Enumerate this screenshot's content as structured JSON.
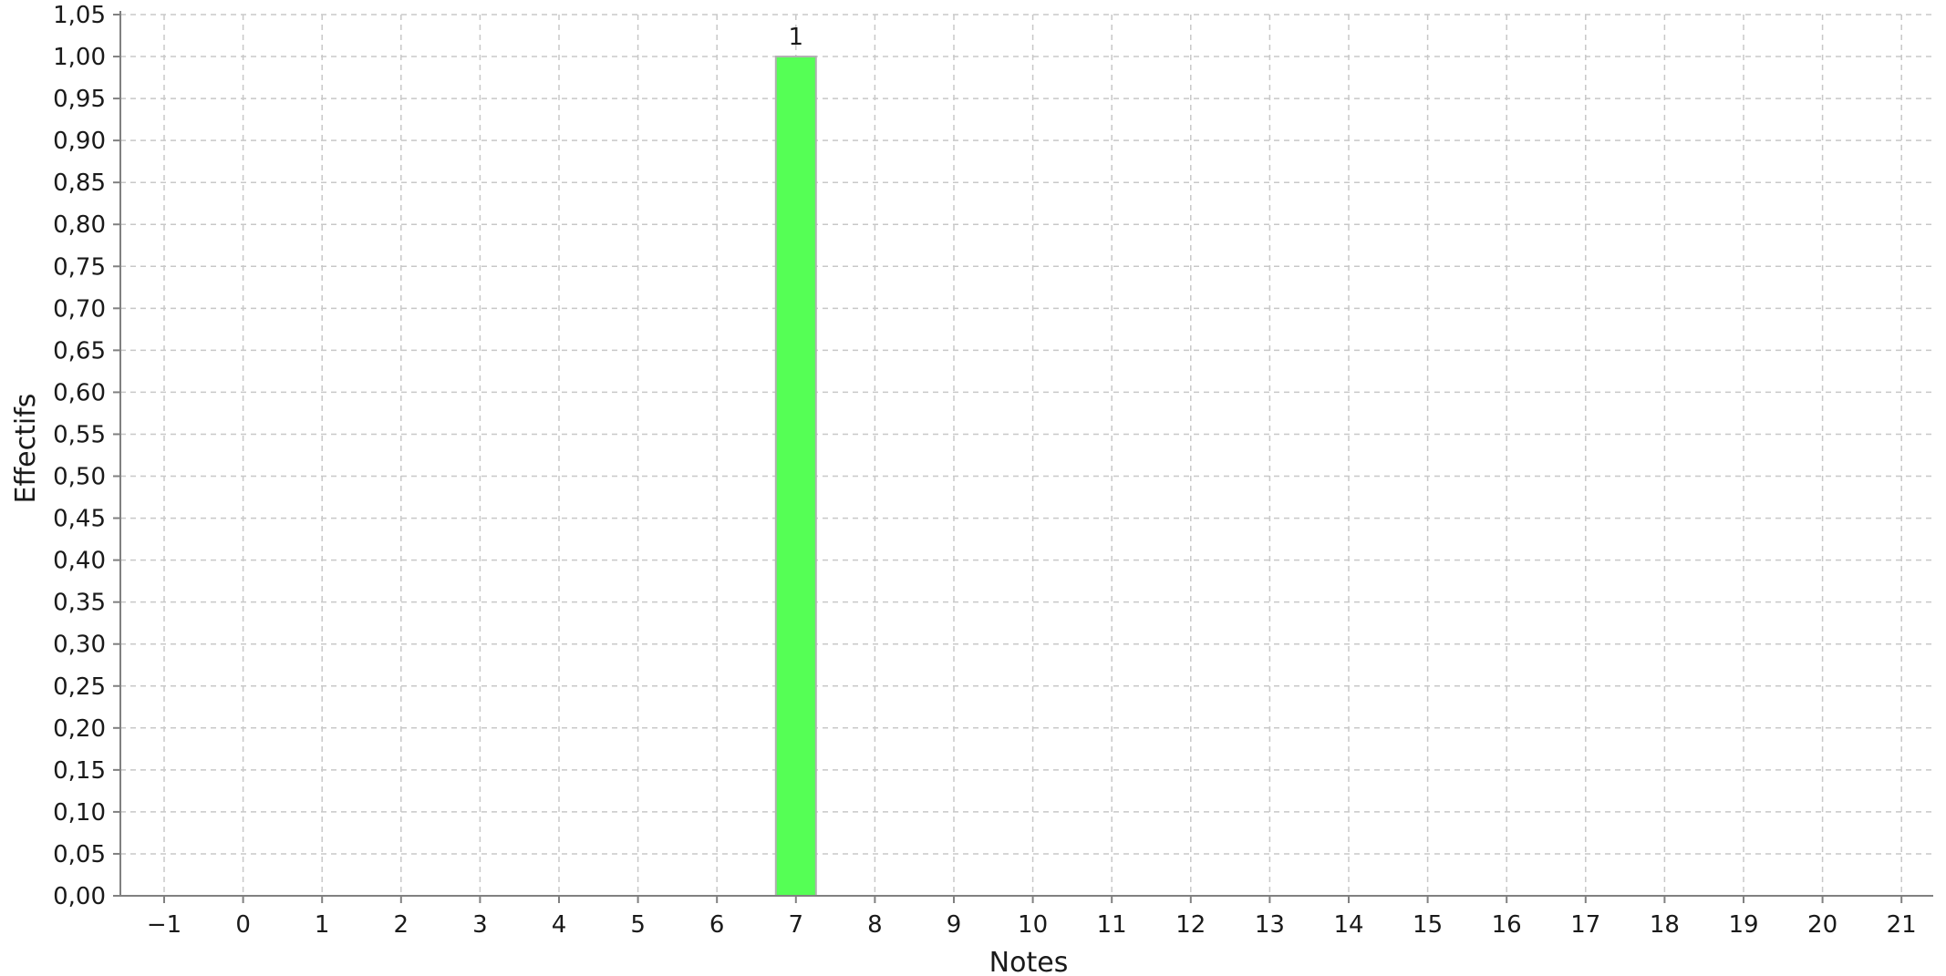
{
  "chart_data": {
    "type": "bar",
    "xlabel": "Notes",
    "ylabel": "Effectifs",
    "categories": [
      "-1",
      "0",
      "1",
      "2",
      "3",
      "4",
      "5",
      "6",
      "7",
      "8",
      "9",
      "10",
      "11",
      "12",
      "13",
      "14",
      "15",
      "16",
      "17",
      "18",
      "19",
      "20",
      "21"
    ],
    "x_tick_labels": [
      "−1",
      "0",
      "1",
      "2",
      "3",
      "4",
      "5",
      "6",
      "7",
      "8",
      "9",
      "10",
      "11",
      "12",
      "13",
      "14",
      "15",
      "16",
      "17",
      "18",
      "19",
      "20",
      "21"
    ],
    "values": [
      0,
      0,
      0,
      0,
      0,
      0,
      0,
      0,
      1,
      0,
      0,
      0,
      0,
      0,
      0,
      0,
      0,
      0,
      0,
      0,
      0,
      0,
      0
    ],
    "data_labels": [
      {
        "category": "7",
        "text": "1"
      }
    ],
    "ylim": [
      0,
      1.05
    ],
    "y_ticks": [
      0,
      0.05,
      0.1,
      0.15,
      0.2,
      0.25,
      0.3,
      0.35,
      0.4,
      0.45,
      0.5,
      0.55,
      0.6,
      0.65,
      0.7,
      0.75,
      0.8,
      0.85,
      0.9,
      0.95,
      1.0,
      1.05
    ],
    "y_tick_labels": [
      "0,00",
      "0,05",
      "0,10",
      "0,15",
      "0,20",
      "0,25",
      "0,30",
      "0,35",
      "0,40",
      "0,45",
      "0,50",
      "0,55",
      "0,60",
      "0,65",
      "0,70",
      "0,75",
      "0,80",
      "0,85",
      "0,90",
      "0,95",
      "1,00",
      "1,05"
    ],
    "grid": true,
    "legend": "none",
    "colors": {
      "bar_fill": "#55ff55",
      "bar_stroke": "#b0b0b0",
      "grid": "#c8c8c8",
      "axis": "#808080",
      "text": "#1a1a1a"
    }
  }
}
